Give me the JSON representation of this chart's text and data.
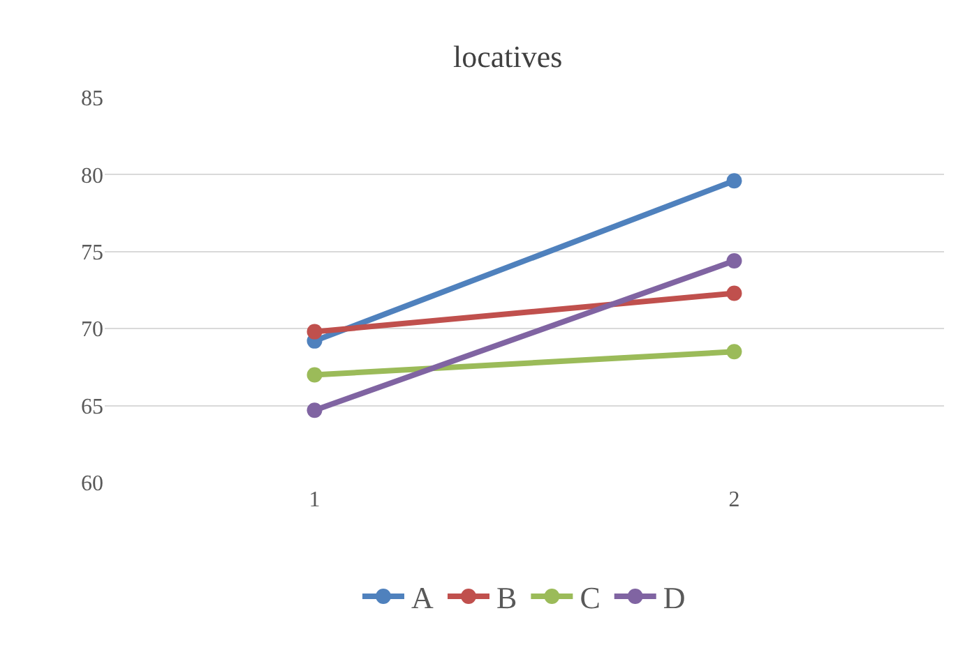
{
  "chart_data": {
    "type": "line",
    "title": "locatives",
    "categories": [
      "1",
      "2"
    ],
    "series": [
      {
        "name": "A",
        "color": "#4f81bd",
        "values": [
          69.2,
          79.6
        ]
      },
      {
        "name": "B",
        "color": "#c0504d",
        "values": [
          69.8,
          72.3
        ]
      },
      {
        "name": "C",
        "color": "#9bbb59",
        "values": [
          67.0,
          68.5
        ]
      },
      {
        "name": "D",
        "color": "#8064a2",
        "values": [
          64.7,
          74.4
        ]
      }
    ],
    "ylim": [
      60,
      85
    ],
    "yticks": [
      60,
      65,
      70,
      75,
      80,
      85
    ],
    "grid": "y",
    "legend": "bottom",
    "marker": "circle",
    "line_style": "solid"
  }
}
